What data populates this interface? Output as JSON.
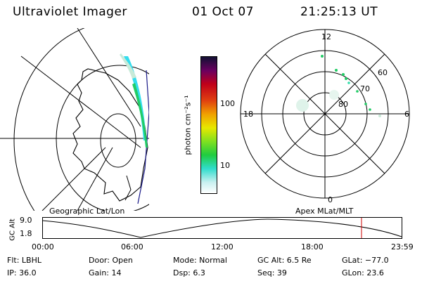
{
  "header": {
    "title": "Ultraviolet Imager",
    "date": "01 Oct 07",
    "time": "21:25:13 UT"
  },
  "colorbar": {
    "unit_label": "photon cm⁻²s⁻¹",
    "ticks": [
      "100",
      "10"
    ]
  },
  "polar_plot": {
    "mlt_labels": {
      "top": "12",
      "left": "18",
      "right": "6",
      "bottom": "0"
    },
    "lat_labels": [
      "60",
      "70",
      "80"
    ]
  },
  "altitude_plot": {
    "left_title": "Geographic Lat/Lon",
    "right_title": "Apex MLat/MLT",
    "y_label": "GC Alt",
    "y_ticks": [
      "9.0",
      "1.8"
    ],
    "x_ticks": [
      "00:00",
      "06:00",
      "12:00",
      "18:00",
      "23:59"
    ],
    "marker_color": "#cc0000"
  },
  "status": {
    "flt": "Flt: LBHL",
    "ip": "IP: 36.0",
    "door": "Door: Open",
    "gain": "Gain: 14",
    "mode": "Mode: Normal",
    "dsp": "Dsp:     6.3",
    "gc_alt": "GC Alt: 6.5 Re",
    "seq": "Seq: 39",
    "glat": "GLat: −77.0",
    "glon": "GLon:  23.6"
  },
  "colors": {
    "aurora_cyan": "#33ddee",
    "aurora_green": "#22cc66",
    "aurora_faint": "#c8ead8"
  }
}
